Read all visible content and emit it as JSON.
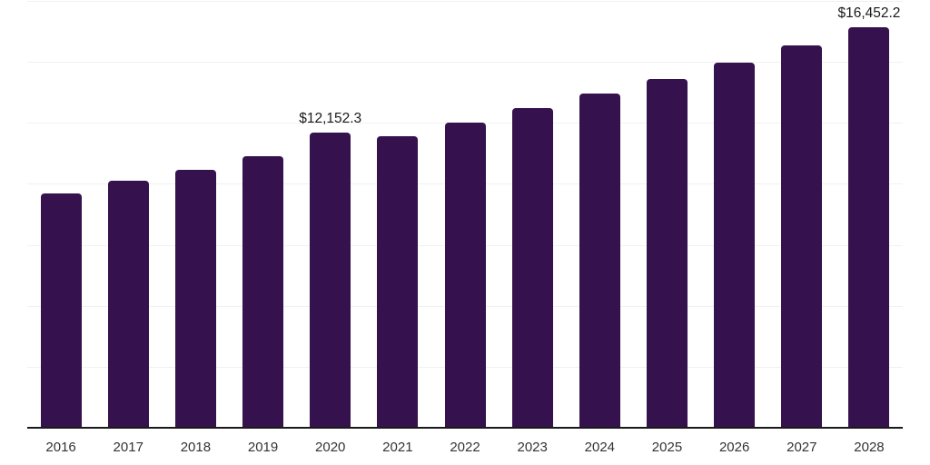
{
  "chart_data": {
    "type": "bar",
    "title": "",
    "xlabel": "",
    "ylabel": "",
    "categories": [
      "2016",
      "2017",
      "2018",
      "2019",
      "2020",
      "2021",
      "2022",
      "2023",
      "2024",
      "2025",
      "2026",
      "2027",
      "2028"
    ],
    "values": [
      9630,
      10160,
      10630,
      11180,
      12152.3,
      12000,
      12560,
      13150,
      13740,
      14340,
      15010,
      15710,
      16452.2
    ],
    "point_labels": [
      "",
      "",
      "",
      "",
      "$12,152.3",
      "",
      "",
      "",
      "",
      "",
      "",
      "",
      "$16,452.2"
    ],
    "ylim": [
      0,
      17500
    ],
    "gridline_values": [
      2500,
      5000,
      7500,
      10000,
      12500,
      15000,
      17500
    ],
    "grid": "horizontal",
    "legend": "none",
    "colors": {
      "bar": "#35114D",
      "gridline": "#F1F1F1",
      "axis_line": "#1A1A1A",
      "tick_label": "#333333",
      "point_label": "#1A1A1A",
      "background": "#FFFFFF"
    }
  }
}
